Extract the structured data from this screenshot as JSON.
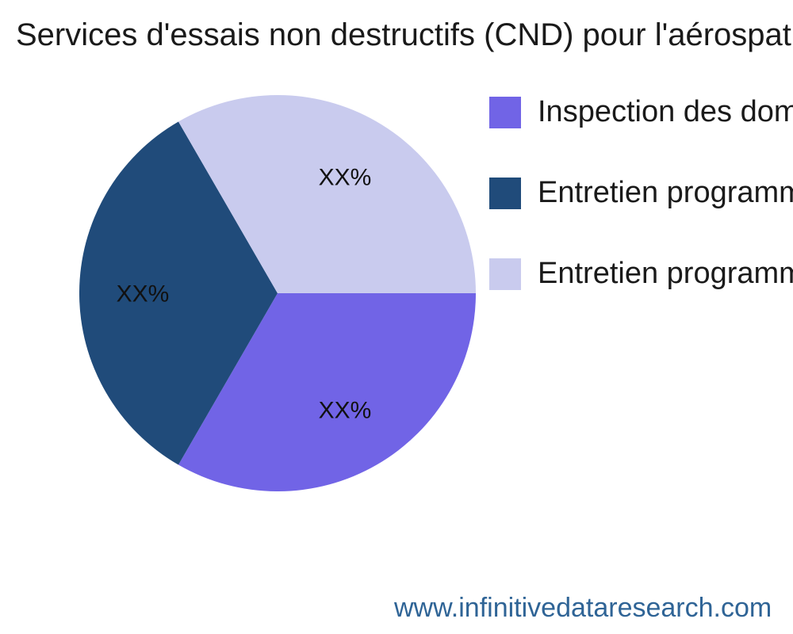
{
  "header": {
    "title": "Services d'essais non destructifs (CND) pour l'aérospatia"
  },
  "chart_data": {
    "type": "pie",
    "title": "Services d'essais non destructifs (CND) pour l'aérospatia",
    "values_masked": true,
    "start_angle_deg": 0,
    "direction": "clockwise",
    "legend_position": "right",
    "slices": [
      {
        "legend_label": "Inspection des domm",
        "display_label": "XX%",
        "value_pct": 33.3,
        "color": "#7164e6"
      },
      {
        "legend_label": "Entretien programmé",
        "display_label": "XX%",
        "value_pct": 33.3,
        "color": "#204b7a"
      },
      {
        "legend_label": "Entretien programmé",
        "display_label": "XX%",
        "value_pct": 33.3,
        "color": "#c9cbee"
      }
    ]
  },
  "footer": {
    "website": "www.infinitivedataresearch.com"
  },
  "colors": {
    "background": "#ffffff",
    "title_text": "#1a1a1a",
    "slice_label_text": "#111111",
    "footer_text": "#2f6496"
  }
}
